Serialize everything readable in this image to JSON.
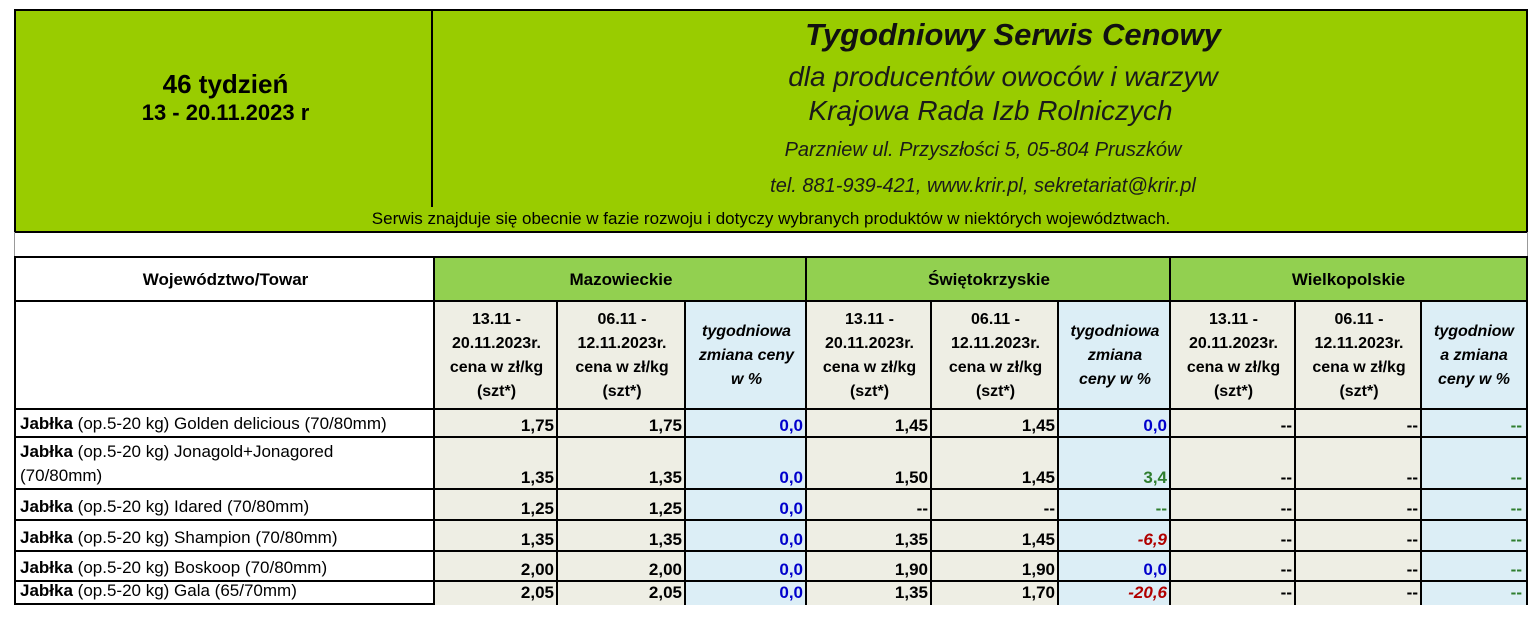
{
  "header": {
    "week_label": "46 tydzień",
    "week_dates": "13 - 20.11.2023 r",
    "title": "Tygodniowy Serwis Cenowy",
    "subtitle": "dla producentów owoców i warzyw",
    "org": "Krajowa Rada Izb Rolniczych",
    "address": "Parzniew ul. Przyszłości 5, 05-804 Pruszków",
    "contact": "tel. 881-939-421, www.krir.pl, sekretariat@krir.pl",
    "notice": "Serwis znajduje się obecnie w  fazie rozwoju i dotyczy wybranych produktów w niektórych województwach."
  },
  "table": {
    "corner_label": "Województwo/Towar",
    "regions": [
      "Mazowieckie",
      "Świętokrzyskie",
      "Wielkopolskie"
    ],
    "col_headers": {
      "current": [
        "13.11 -",
        "20.11.2023r.",
        "cena w zł/kg",
        "(szt*)"
      ],
      "previous": [
        "06.11 -",
        "12.11.2023r.",
        "cena w zł/kg",
        "(szt*)"
      ],
      "change_a": [
        "tygodniowa",
        "zmiana ceny",
        "w %"
      ],
      "change_b": [
        "tygodniowa",
        "zmiana",
        "ceny w %"
      ],
      "change_c": [
        "tygodniow",
        "a zmiana",
        "ceny w %"
      ]
    },
    "product_bold": "Jabłka",
    "rows": [
      {
        "spec": " (op.5-20 kg)  Golden delicious  (70/80mm)",
        "spec2": "",
        "vals": [
          "1,75",
          "1,75",
          "0,0",
          "1,45",
          "1,45",
          "0,0",
          "--",
          "--",
          "--"
        ]
      },
      {
        "spec": " (op.5-20 kg) Jonagold+Jonagored",
        "spec2": "(70/80mm)",
        "vals": [
          "1,35",
          "1,35",
          "0,0",
          "1,50",
          "1,45",
          "3,4",
          "--",
          "--",
          "--"
        ]
      },
      {
        "spec": " (op.5-20 kg)  Idared (70/80mm)",
        "spec2": "",
        "vals": [
          "1,25",
          "1,25",
          "0,0",
          "--",
          "--",
          "--",
          "--",
          "--",
          "--"
        ]
      },
      {
        "spec": " (op.5-20 kg) Shampion (70/80mm)",
        "spec2": "",
        "vals": [
          "1,35",
          "1,35",
          "0,0",
          "1,35",
          "1,45",
          "-6,9",
          "--",
          "--",
          "--"
        ]
      },
      {
        "spec": " (op.5-20 kg) Boskoop (70/80mm)",
        "spec2": "",
        "vals": [
          "2,00",
          "2,00",
          "0,0",
          "1,90",
          "1,90",
          "0,0",
          "--",
          "--",
          "--"
        ]
      },
      {
        "spec": " (op.5-20 kg) Gala (65/70mm)",
        "spec2": "",
        "vals": [
          "2,05",
          "2,05",
          "0,0",
          "1,35",
          "1,70",
          "-20,6",
          "--",
          "--",
          "--"
        ]
      }
    ]
  },
  "colors": {
    "header_green": "#99cc00",
    "region_green": "#92d050",
    "price_beige": "#eeeee4",
    "change_blue": "#dceef6",
    "zero_blue": "#0000cc",
    "positive_green": "#2e7d2e",
    "negative_red": "#b00000"
  }
}
